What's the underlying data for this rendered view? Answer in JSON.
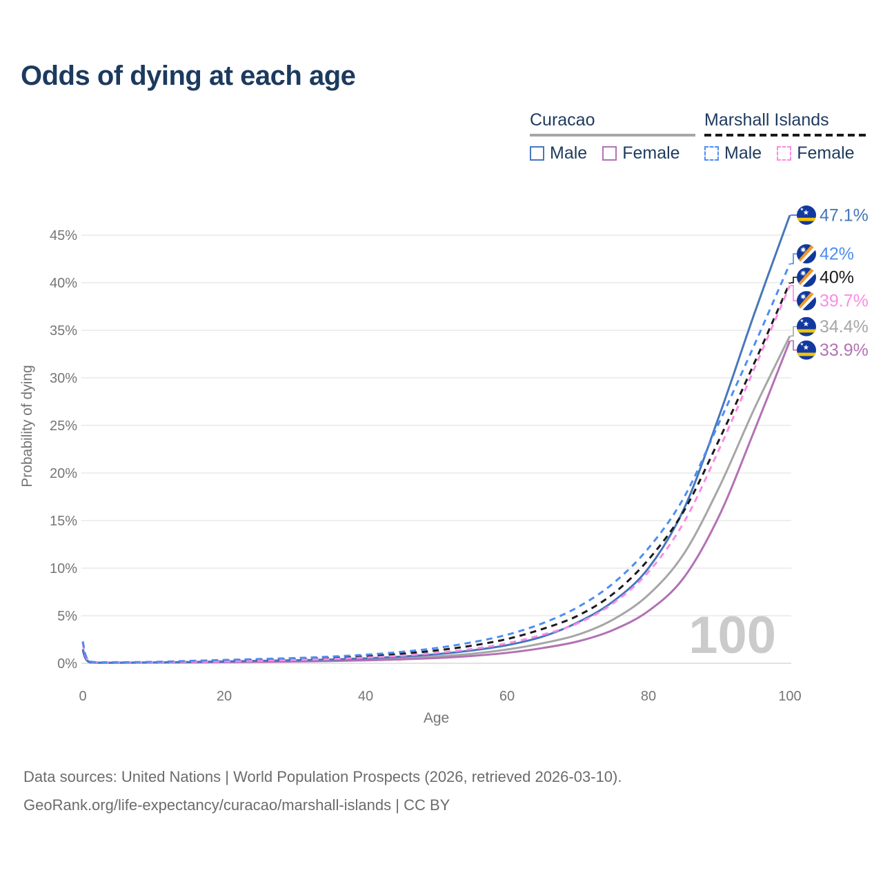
{
  "title": "Odds of dying at each age",
  "legend": {
    "groups": [
      {
        "name": "Curacao",
        "line_style": "solid",
        "rule_color": "#a6a6a6",
        "items": [
          {
            "label": "Male",
            "color": "#4677bb"
          },
          {
            "label": "Female",
            "color": "#b371b5"
          }
        ]
      },
      {
        "name": "Marshall Islands",
        "line_style": "dashed",
        "rule_color": "#1a1a1a",
        "items": [
          {
            "label": "Male",
            "color": "#4e8df2"
          },
          {
            "label": "Female",
            "color": "#fc8be6"
          }
        ]
      }
    ]
  },
  "chart_data": {
    "type": "line",
    "title": "Odds of dying at each age",
    "xlabel": "Age",
    "ylabel": "Probability of dying",
    "unit": "%",
    "xlim": [
      0,
      100
    ],
    "ylim": [
      0,
      47.5
    ],
    "xticks": [
      0,
      20,
      40,
      60,
      80,
      100
    ],
    "yticks": [
      0,
      5,
      10,
      15,
      20,
      25,
      30,
      35,
      40,
      45
    ],
    "ytick_suffix": "%",
    "grid": true,
    "legend_position": "top-right",
    "watermark": "100",
    "ages": [
      0,
      1,
      5,
      10,
      15,
      20,
      25,
      30,
      35,
      40,
      45,
      50,
      55,
      60,
      65,
      70,
      75,
      80,
      85,
      90,
      95,
      100
    ],
    "series": [
      {
        "name": "Curacao Both sexes",
        "country": "Curacao",
        "sex": "Both",
        "color": "#a6a6a6",
        "dash": false,
        "flag": "curacao",
        "end_label": "34.4%",
        "values": [
          1.4,
          0.1,
          0.06,
          0.08,
          0.11,
          0.15,
          0.19,
          0.24,
          0.3,
          0.4,
          0.53,
          0.72,
          1.0,
          1.45,
          2.1,
          3.0,
          4.6,
          7.2,
          11.5,
          18.5,
          26.8,
          34.4
        ]
      },
      {
        "name": "Curacao Female",
        "country": "Curacao",
        "sex": "Female",
        "color": "#b371b5",
        "dash": false,
        "flag": "curacao",
        "end_label": "33.9%",
        "values": [
          1.3,
          0.09,
          0.05,
          0.07,
          0.09,
          0.12,
          0.15,
          0.19,
          0.24,
          0.31,
          0.41,
          0.55,
          0.77,
          1.1,
          1.6,
          2.3,
          3.5,
          5.5,
          9.0,
          15.5,
          24.5,
          33.9
        ]
      },
      {
        "name": "Curacao Male",
        "country": "Curacao",
        "sex": "Male",
        "color": "#4677bb",
        "dash": false,
        "flag": "curacao",
        "end_label": "47.1%",
        "values": [
          1.5,
          0.12,
          0.07,
          0.09,
          0.14,
          0.2,
          0.26,
          0.32,
          0.4,
          0.52,
          0.7,
          0.95,
          1.35,
          1.9,
          2.8,
          4.3,
          6.5,
          10.0,
          16.2,
          26.0,
          36.8,
          47.1
        ]
      },
      {
        "name": "Marshall Islands Both sexes",
        "country": "Marshall Islands",
        "sex": "Both",
        "color": "#1a1a1a",
        "dash": true,
        "flag": "marshall-islands",
        "end_label": "40%",
        "values": [
          2.2,
          0.18,
          0.1,
          0.13,
          0.2,
          0.28,
          0.36,
          0.45,
          0.58,
          0.75,
          1.0,
          1.35,
          1.85,
          2.55,
          3.6,
          5.0,
          7.3,
          10.9,
          16.0,
          23.5,
          31.6,
          40.0
        ]
      },
      {
        "name": "Marshall Islands Female",
        "country": "Marshall Islands",
        "sex": "Female",
        "color": "#fc8be6",
        "dash": true,
        "flag": "marshall-islands",
        "end_label": "39.7%",
        "values": [
          2.1,
          0.16,
          0.09,
          0.11,
          0.16,
          0.2,
          0.27,
          0.35,
          0.45,
          0.6,
          0.8,
          1.1,
          1.5,
          2.1,
          3.0,
          4.2,
          6.3,
          9.6,
          14.8,
          22.5,
          31.0,
          39.7
        ]
      },
      {
        "name": "Marshall Islands Male",
        "country": "Marshall Islands",
        "sex": "Male",
        "color": "#4e8df2",
        "dash": true,
        "flag": "marshall-islands",
        "end_label": "42%",
        "values": [
          2.3,
          0.2,
          0.12,
          0.15,
          0.25,
          0.35,
          0.45,
          0.55,
          0.7,
          0.9,
          1.2,
          1.6,
          2.2,
          3.0,
          4.2,
          5.9,
          8.4,
          12.1,
          17.4,
          25.3,
          33.5,
          42.0
        ]
      }
    ],
    "flag_colors": {
      "curacao": {
        "field": "#1239a0",
        "stripe": "#f2c500",
        "stars": "#ffffff"
      },
      "marshall-islands": {
        "field": "#10389a",
        "band_white": "#ffffff",
        "band_orange": "#ef9b2a",
        "star": "#ffffff"
      }
    }
  },
  "footer": {
    "line1": "Data sources: United Nations | World Population Prospects (2026, retrieved 2026-03-10).",
    "line2": "GeoRank.org/life-expectancy/curacao/marshall-islands | CC BY"
  }
}
